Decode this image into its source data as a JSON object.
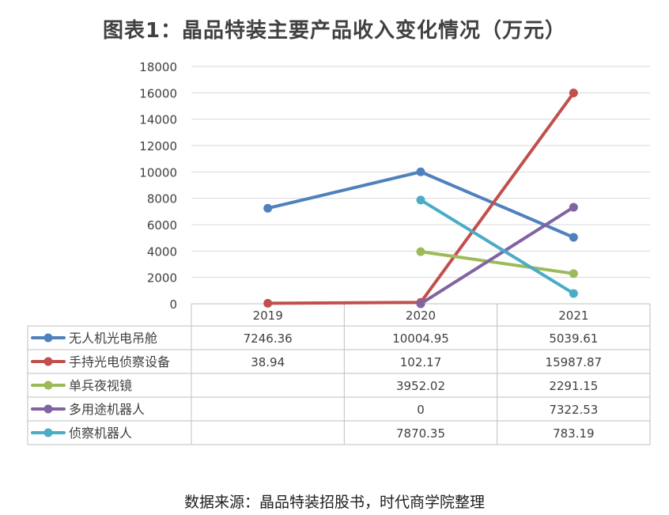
{
  "title": "图表1：晶品特装主要产品收入变化情况（万元）",
  "source": "数据来源：晶品特装招股书，时代商学院整理",
  "chart_data": {
    "type": "line",
    "categories": [
      "2019",
      "2020",
      "2021"
    ],
    "ylim": [
      0,
      18000
    ],
    "yticks": [
      "0",
      "2000",
      "4000",
      "6000",
      "8000",
      "10000",
      "12000",
      "14000",
      "16000",
      "18000"
    ],
    "grid": true,
    "legend": "data-table",
    "series": [
      {
        "name": "无人机光电吊舱",
        "color": "#4F81BD",
        "values": [
          7246.36,
          10004.95,
          5039.61
        ],
        "labels": [
          "7246.36",
          "10004.95",
          "5039.61"
        ]
      },
      {
        "name": "手持光电侦察设备",
        "color": "#C0504D",
        "values": [
          38.94,
          102.17,
          15987.87
        ],
        "labels": [
          "38.94",
          "102.17",
          "15987.87"
        ]
      },
      {
        "name": "单兵夜视镜",
        "color": "#9BBB59",
        "values": [
          null,
          3952.02,
          2291.15
        ],
        "labels": [
          "",
          "3952.02",
          "2291.15"
        ]
      },
      {
        "name": "多用途机器人",
        "color": "#8064A2",
        "values": [
          null,
          0,
          7322.53
        ],
        "labels": [
          "",
          "0",
          "7322.53"
        ]
      },
      {
        "name": "侦察机器人",
        "color": "#4BACC6",
        "values": [
          null,
          7870.35,
          783.19
        ],
        "labels": [
          "",
          "7870.35",
          "783.19"
        ]
      }
    ]
  }
}
